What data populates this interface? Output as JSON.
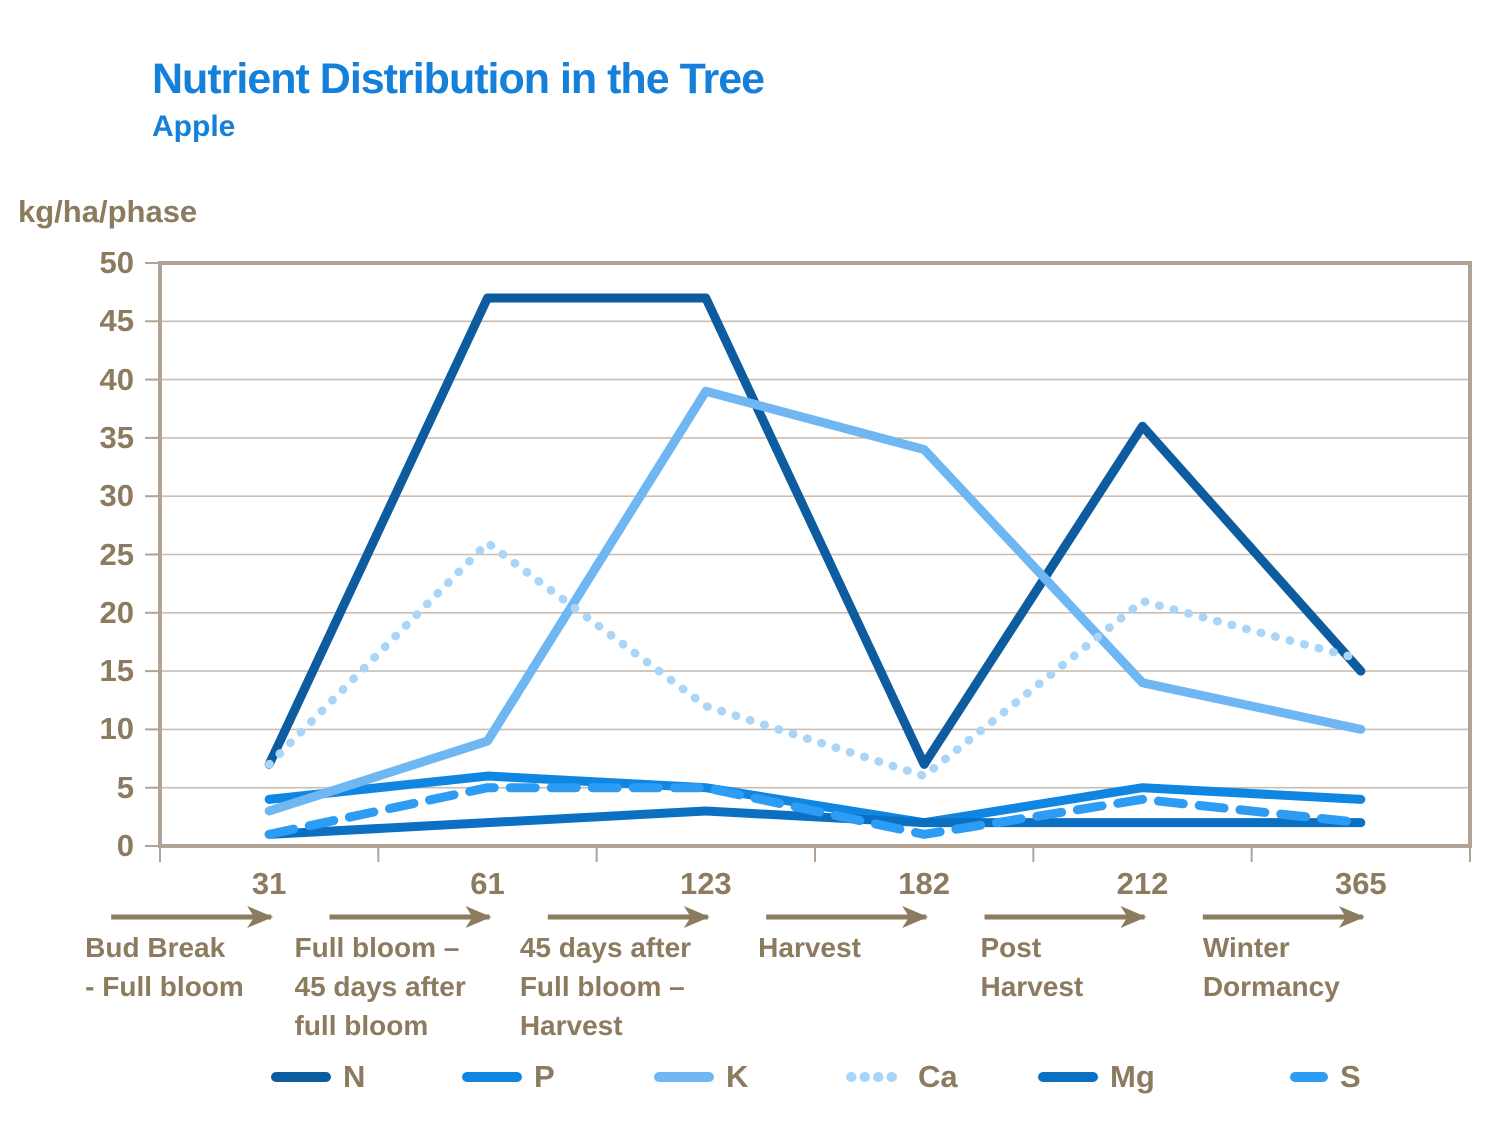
{
  "header": {
    "title": "Nutrient Distribution in the Tree",
    "subtitle": "Apple"
  },
  "y_axis": {
    "label": "kg/ha/phase",
    "ticks": [
      50,
      45,
      40,
      35,
      30,
      25,
      20,
      15,
      10,
      5,
      0
    ]
  },
  "x_axis": {
    "points": [
      {
        "day": "31",
        "phase_lines": [
          "Bud Break",
          "- Full bloom"
        ]
      },
      {
        "day": "61",
        "phase_lines": [
          "Full bloom –",
          "45 days after",
          "full bloom"
        ]
      },
      {
        "day": "123",
        "phase_lines": [
          "45 days after",
          "Full bloom –",
          "Harvest"
        ]
      },
      {
        "day": "182",
        "phase_lines": [
          "Harvest"
        ]
      },
      {
        "day": "212",
        "phase_lines": [
          "Post",
          "Harvest"
        ]
      },
      {
        "day": "365",
        "phase_lines": [
          "Winter",
          "Dormancy"
        ]
      }
    ]
  },
  "colors": {
    "title_blue": "#1580DA",
    "axis_text_brown": "#8C7B5E",
    "plot_border": "#B1A496",
    "gridline": "#C8BEB2"
  },
  "chart_data": {
    "type": "line",
    "title": "Nutrient Distribution in the Tree",
    "subtitle": "Apple",
    "ylabel": "kg/ha/phase",
    "ylim": [
      0,
      50
    ],
    "y_step": 5,
    "grid": true,
    "legend_position": "bottom",
    "x_days": [
      31,
      61,
      123,
      182,
      212,
      365
    ],
    "x_phases": [
      "Bud Break - Full bloom",
      "Full bloom – 45 days after full bloom",
      "45 days after Full bloom – Harvest",
      "Harvest",
      "Post Harvest",
      "Winter Dormancy"
    ],
    "series": [
      {
        "name": "N",
        "values": [
          7,
          47,
          47,
          7,
          36,
          15
        ],
        "color": "#0D5C9F",
        "dash": "solid"
      },
      {
        "name": "P",
        "values": [
          4,
          6,
          5,
          2,
          5,
          4
        ],
        "color": "#0F86E2",
        "dash": "solid"
      },
      {
        "name": "K",
        "values": [
          3,
          9,
          39,
          34,
          14,
          10
        ],
        "color": "#6FB7F3",
        "dash": "solid"
      },
      {
        "name": "Ca",
        "values": [
          7,
          26,
          12,
          6,
          21,
          16
        ],
        "color": "#A9D5F8",
        "dash": "dotted"
      },
      {
        "name": "Mg",
        "values": [
          1,
          2,
          3,
          2,
          2,
          2
        ],
        "color": "#0C70C2",
        "dash": "solid"
      },
      {
        "name": "S",
        "values": [
          1,
          5,
          5,
          1,
          4,
          2
        ],
        "color": "#2D9CF4",
        "dash": "dashed"
      }
    ]
  }
}
